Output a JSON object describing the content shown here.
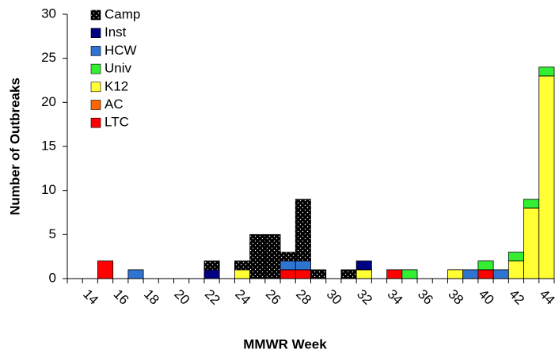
{
  "chart_data": {
    "type": "stacked_bar",
    "x_label": "MMWR Week",
    "y_label": "Number of Outbreaks",
    "categories": [
      null,
      "14",
      null,
      "16",
      null,
      "18",
      null,
      "20",
      null,
      "22",
      null,
      "24",
      null,
      "26",
      null,
      "28",
      null,
      "30",
      null,
      "32",
      null,
      "34",
      null,
      "36",
      null,
      "38",
      null,
      "40",
      null,
      "42",
      null,
      "44"
    ],
    "series": [
      {
        "name": "Camp",
        "color": "#000000",
        "pattern": "dots",
        "values": [
          0,
          0,
          0,
          0,
          0,
          0,
          0,
          0,
          0,
          1,
          0,
          1,
          5,
          5,
          1,
          7,
          1,
          0,
          1,
          0,
          0,
          0,
          0,
          0,
          0,
          0,
          0,
          0,
          0,
          0,
          0,
          0
        ]
      },
      {
        "name": "Inst",
        "color": "#000080",
        "values": [
          0,
          0,
          0,
          0,
          0,
          0,
          0,
          0,
          0,
          1,
          0,
          0,
          0,
          0,
          0,
          0,
          0,
          0,
          0,
          1,
          0,
          0,
          0,
          0,
          0,
          0,
          0,
          0,
          0,
          0,
          0,
          0
        ]
      },
      {
        "name": "HCW",
        "color": "#2f74d0",
        "values": [
          0,
          0,
          0,
          0,
          1,
          0,
          0,
          0,
          0,
          0,
          0,
          0,
          0,
          0,
          1,
          1,
          0,
          0,
          0,
          0,
          0,
          0,
          0,
          0,
          0,
          0,
          1,
          0,
          1,
          0,
          0,
          0
        ]
      },
      {
        "name": "Univ",
        "color": "#33ee33",
        "values": [
          0,
          0,
          0,
          0,
          0,
          0,
          0,
          0,
          0,
          0,
          0,
          0,
          0,
          0,
          0,
          0,
          0,
          0,
          0,
          0,
          0,
          0,
          1,
          0,
          0,
          0,
          0,
          1,
          0,
          1,
          1,
          1
        ]
      },
      {
        "name": "K12",
        "color": "#ffff33",
        "values": [
          0,
          0,
          0,
          0,
          0,
          0,
          0,
          0,
          0,
          0,
          0,
          1,
          0,
          0,
          0,
          0,
          0,
          0,
          0,
          1,
          0,
          0,
          0,
          0,
          0,
          1,
          0,
          0,
          0,
          2,
          8,
          23
        ]
      },
      {
        "name": "AC",
        "color": "#ff6600",
        "values": [
          0,
          0,
          0,
          0,
          0,
          0,
          0,
          0,
          0,
          0,
          0,
          0,
          0,
          0,
          0,
          0,
          0,
          0,
          0,
          0,
          0,
          0,
          0,
          0,
          0,
          0,
          0,
          0,
          0,
          0,
          0,
          0
        ]
      },
      {
        "name": "LTC",
        "color": "#ff0000",
        "values": [
          0,
          0,
          2,
          0,
          0,
          0,
          0,
          0,
          0,
          0,
          0,
          0,
          0,
          0,
          1,
          1,
          0,
          0,
          0,
          0,
          0,
          1,
          0,
          0,
          0,
          0,
          0,
          1,
          0,
          0,
          0,
          0
        ]
      }
    ],
    "ylim": [
      0,
      30
    ],
    "yticks": [
      0,
      5,
      10,
      15,
      20,
      25,
      30
    ],
    "legend": "top-left"
  }
}
